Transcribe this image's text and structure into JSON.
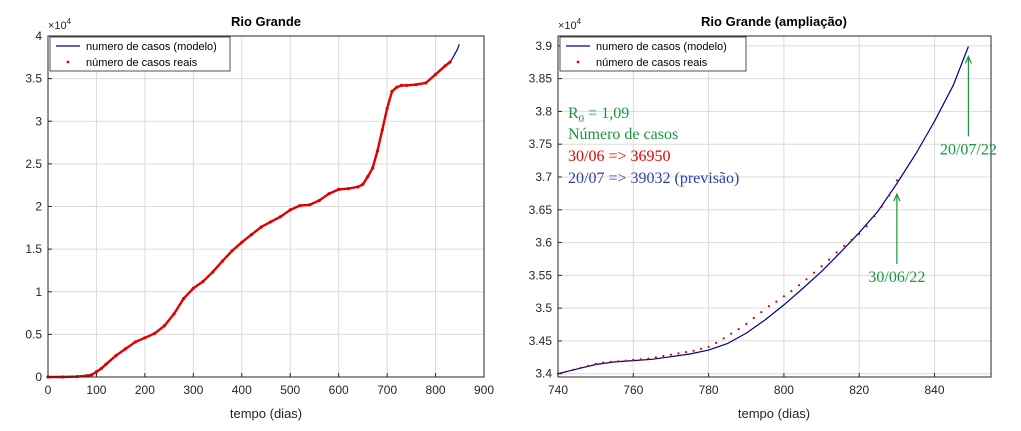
{
  "chart_data": [
    {
      "type": "line",
      "title": "Rio Grande",
      "xlabel": "tempo (dias)",
      "ylabel": "",
      "xlim": [
        0,
        900
      ],
      "ylim": [
        0,
        40000
      ],
      "xticks": [
        0,
        100,
        200,
        300,
        400,
        500,
        600,
        700,
        800,
        900
      ],
      "xtick_labels": [
        "0",
        "100",
        "200",
        "300",
        "400",
        "500",
        "600",
        "700",
        "800",
        "900"
      ],
      "yticks": [
        0,
        5000,
        10000,
        15000,
        20000,
        25000,
        30000,
        35000,
        40000
      ],
      "ytick_labels": [
        "0",
        "0.5",
        "1",
        "1.5",
        "2",
        "2.5",
        "3",
        "3.5",
        "4"
      ],
      "exponent_base": "×10",
      "exponent_power": "4",
      "grid": true,
      "legend_position": "top-left",
      "series": [
        {
          "name": "numero de casos (modelo)",
          "color": "#00008b",
          "style": "line",
          "x": [
            830,
            835,
            840,
            845,
            849
          ],
          "y": [
            36950,
            37400,
            37900,
            38450,
            39032
          ]
        },
        {
          "name": "número de casos reais",
          "color": "#e00000",
          "style": "dots",
          "x": [
            0,
            30,
            60,
            80,
            90,
            100,
            110,
            120,
            140,
            160,
            180,
            200,
            220,
            240,
            260,
            280,
            300,
            320,
            340,
            360,
            380,
            400,
            420,
            440,
            460,
            480,
            500,
            520,
            540,
            560,
            580,
            600,
            620,
            640,
            650,
            660,
            670,
            680,
            690,
            700,
            710,
            720,
            730,
            740,
            760,
            780,
            800,
            820,
            830
          ],
          "y": [
            0,
            0,
            50,
            150,
            250,
            600,
            1000,
            1500,
            2500,
            3300,
            4100,
            4600,
            5100,
            6000,
            7400,
            9200,
            10400,
            11200,
            12300,
            13600,
            14800,
            15800,
            16700,
            17600,
            18200,
            18800,
            19600,
            20100,
            20200,
            20700,
            21500,
            22000,
            22100,
            22300,
            22600,
            23500,
            24500,
            26500,
            29000,
            31500,
            33500,
            34000,
            34200,
            34200,
            34300,
            34500,
            35500,
            36500,
            36950
          ]
        }
      ]
    },
    {
      "type": "line",
      "title": "Rio Grande (ampliação)",
      "xlabel": "tempo (dias)",
      "ylabel": "",
      "xlim": [
        740,
        855
      ],
      "ylim": [
        33950,
        39150
      ],
      "xticks": [
        740,
        760,
        780,
        800,
        820,
        840
      ],
      "xtick_labels": [
        "740",
        "760",
        "780",
        "800",
        "820",
        "840"
      ],
      "yticks": [
        34000,
        34500,
        35000,
        35500,
        36000,
        36500,
        37000,
        37500,
        38000,
        38500,
        39000
      ],
      "ytick_labels": [
        "3.4",
        "3.45",
        "3.5",
        "3.55",
        "3.6",
        "3.65",
        "3.7",
        "3.75",
        "3.8",
        "3.85",
        "3.9"
      ],
      "exponent_base": "×10",
      "exponent_power": "4",
      "grid": true,
      "legend_position": "top-left",
      "series": [
        {
          "name": "numero de casos (modelo)",
          "color": "#00008b",
          "style": "line",
          "x": [
            740,
            745,
            750,
            755,
            760,
            765,
            770,
            775,
            780,
            785,
            790,
            795,
            800,
            805,
            810,
            815,
            820,
            825,
            830,
            835,
            840,
            845,
            849
          ],
          "y": [
            34000,
            34070,
            34140,
            34180,
            34200,
            34220,
            34260,
            34300,
            34360,
            34460,
            34620,
            34820,
            35050,
            35300,
            35560,
            35850,
            36150,
            36480,
            36900,
            37350,
            37850,
            38400,
            38990
          ]
        },
        {
          "name": "número de casos reais",
          "color": "#e00000",
          "style": "dots",
          "x": [
            740,
            742,
            744,
            746,
            748,
            750,
            752,
            754,
            756,
            758,
            760,
            762,
            764,
            766,
            768,
            770,
            772,
            774,
            776,
            778,
            780,
            782,
            784,
            786,
            788,
            790,
            792,
            794,
            796,
            798,
            800,
            802,
            804,
            806,
            808,
            810,
            812,
            814,
            816,
            818,
            820,
            822,
            824,
            826,
            828,
            830
          ],
          "y": [
            34000,
            34030,
            34060,
            34090,
            34120,
            34150,
            34170,
            34180,
            34190,
            34200,
            34210,
            34220,
            34230,
            34250,
            34270,
            34290,
            34310,
            34330,
            34350,
            34380,
            34410,
            34470,
            34540,
            34610,
            34680,
            34760,
            34850,
            34940,
            35030,
            35100,
            35180,
            35260,
            35350,
            35440,
            35540,
            35640,
            35740,
            35850,
            35950,
            36040,
            36130,
            36250,
            36400,
            36550,
            36720,
            36950
          ]
        }
      ],
      "annotations": {
        "r0_label": "R",
        "r0_sub": "0",
        "r0_value": "= 1,09",
        "cases_label": "Número de casos",
        "real_line": "30/06 => 36950",
        "forecast_line": "20/07 => 39032 (previsão)",
        "arrow1": {
          "label": "30/06/22",
          "x": 830,
          "y": 36800
        },
        "arrow2": {
          "label": "20/07/22",
          "x": 849,
          "y": 38900
        },
        "green": "#1a9641",
        "red": "#e00000",
        "blue": "#2b3fa8"
      }
    }
  ]
}
